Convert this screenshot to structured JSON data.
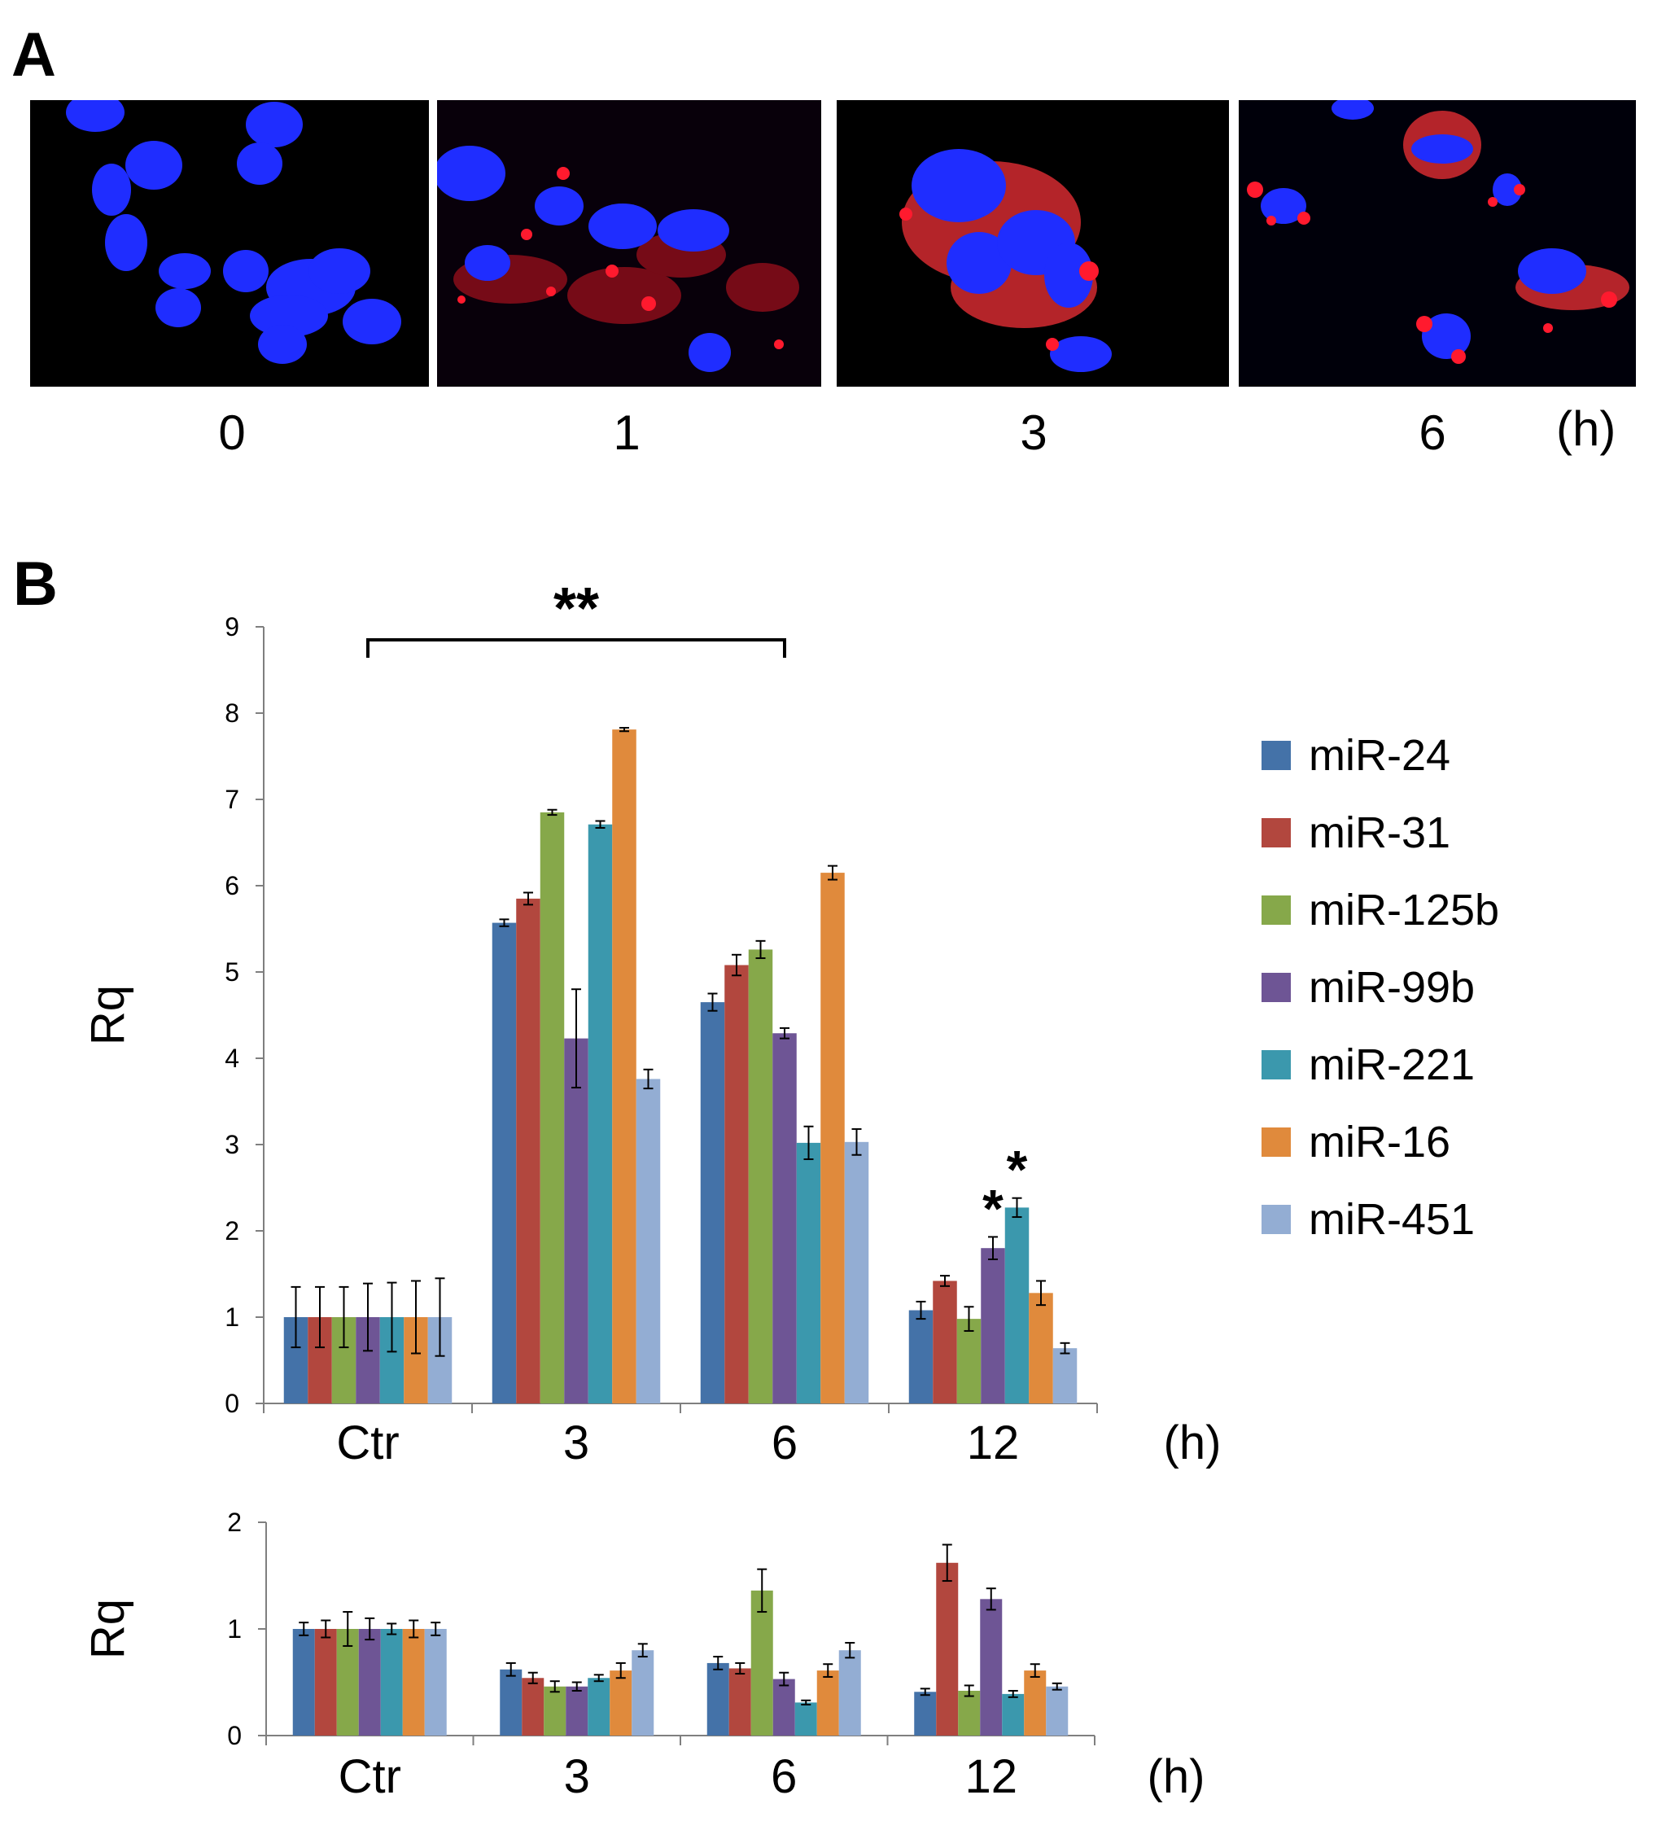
{
  "panel_a": {
    "letter": "A",
    "images": [
      {
        "label": "0",
        "description": "nuclei only"
      },
      {
        "label": "1",
        "description": "sparse red puncta"
      },
      {
        "label": "3",
        "description": "dense red staining"
      },
      {
        "label": "6",
        "description": "red clusters"
      }
    ],
    "unit": "(h)"
  },
  "panel_b": {
    "letter": "B",
    "legend": [
      "miR-24",
      "miR-31",
      "miR-125b",
      "miR-99b",
      "miR-221",
      "miR-16",
      "miR-451"
    ]
  },
  "colors": {
    "miR-24": "#4472a8",
    "miR-31": "#b2473e",
    "miR-125b": "#86a84a",
    "miR-99b": "#6e5595",
    "miR-221": "#3b98ad",
    "miR-16": "#e08a3c",
    "miR-451": "#93add3",
    "nucleus": "#1f2dff",
    "stain": "#ff1a2e"
  },
  "chart_data": [
    {
      "type": "bar",
      "categories": [
        "Ctr",
        "3",
        "6",
        "12"
      ],
      "xunit": "(h)",
      "ylabel": "Rq",
      "ylim": [
        0,
        9
      ],
      "yticks": [
        0,
        1,
        2,
        3,
        4,
        5,
        6,
        7,
        8,
        9
      ],
      "series": [
        {
          "name": "miR-24",
          "values": [
            1.0,
            5.57,
            4.65,
            1.08
          ],
          "errors": [
            0.35,
            0.04,
            0.1,
            0.1
          ]
        },
        {
          "name": "miR-31",
          "values": [
            1.0,
            5.85,
            5.08,
            1.42
          ],
          "errors": [
            0.35,
            0.07,
            0.12,
            0.06
          ]
        },
        {
          "name": "miR-125b",
          "values": [
            1.0,
            6.85,
            5.26,
            0.98
          ],
          "errors": [
            0.35,
            0.03,
            0.1,
            0.14
          ]
        },
        {
          "name": "miR-99b",
          "values": [
            1.0,
            4.23,
            4.29,
            1.8
          ],
          "errors": [
            0.39,
            0.57,
            0.06,
            0.13
          ]
        },
        {
          "name": "miR-221",
          "values": [
            1.0,
            6.71,
            3.02,
            2.27
          ],
          "errors": [
            0.4,
            0.04,
            0.19,
            0.11
          ]
        },
        {
          "name": "miR-16",
          "values": [
            1.0,
            7.81,
            6.15,
            1.28
          ],
          "errors": [
            0.42,
            0.02,
            0.08,
            0.14
          ]
        },
        {
          "name": "miR-451",
          "values": [
            1.0,
            3.76,
            3.03,
            0.64
          ],
          "errors": [
            0.45,
            0.11,
            0.15,
            0.06
          ]
        }
      ],
      "annotations": [
        {
          "text": "**",
          "spans": [
            "Ctr",
            "6"
          ]
        },
        {
          "text": "*",
          "category": "12",
          "series": "miR-99b"
        },
        {
          "text": "*",
          "category": "12",
          "series": "miR-221"
        }
      ]
    },
    {
      "type": "bar",
      "categories": [
        "Ctr",
        "3",
        "6",
        "12"
      ],
      "xunit": "(h)",
      "ylabel": "Rq",
      "ylim": [
        0,
        2
      ],
      "yticks": [
        0,
        1,
        2
      ],
      "series": [
        {
          "name": "miR-24",
          "values": [
            1.0,
            0.62,
            0.68,
            0.41
          ],
          "errors": [
            0.06,
            0.06,
            0.06,
            0.03
          ]
        },
        {
          "name": "miR-31",
          "values": [
            1.0,
            0.54,
            0.63,
            1.62
          ],
          "errors": [
            0.08,
            0.05,
            0.05,
            0.17
          ]
        },
        {
          "name": "miR-125b",
          "values": [
            1.0,
            0.46,
            1.36,
            0.42
          ],
          "errors": [
            0.16,
            0.05,
            0.2,
            0.05
          ]
        },
        {
          "name": "miR-99b",
          "values": [
            1.0,
            0.46,
            0.53,
            1.28
          ],
          "errors": [
            0.1,
            0.04,
            0.06,
            0.1
          ]
        },
        {
          "name": "miR-221",
          "values": [
            1.0,
            0.54,
            0.31,
            0.39
          ],
          "errors": [
            0.05,
            0.03,
            0.02,
            0.03
          ]
        },
        {
          "name": "miR-16",
          "values": [
            1.0,
            0.61,
            0.61,
            0.61
          ],
          "errors": [
            0.08,
            0.07,
            0.06,
            0.06
          ]
        },
        {
          "name": "miR-451",
          "values": [
            1.0,
            0.8,
            0.8,
            0.46
          ],
          "errors": [
            0.06,
            0.06,
            0.07,
            0.03
          ]
        }
      ]
    }
  ]
}
